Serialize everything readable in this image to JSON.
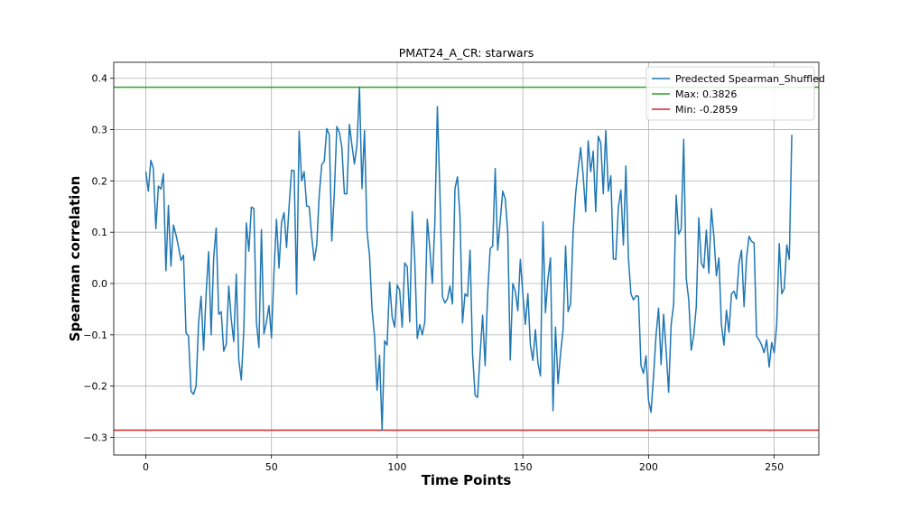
{
  "chart_data": {
    "type": "line",
    "title": "PMAT24_A_CR: starwars",
    "xlabel": "Time Points",
    "ylabel": "Spearman correlation",
    "xlim": [
      -12.75,
      267.75
    ],
    "ylim": [
      -0.3343,
      0.4312
    ],
    "x_ticks": [
      0,
      50,
      100,
      150,
      200,
      250
    ],
    "y_ticks": [
      -0.3,
      -0.2,
      -0.1,
      0.0,
      0.1,
      0.2,
      0.3,
      0.4
    ],
    "x_tick_labels": [
      "0",
      "50",
      "100",
      "150",
      "200",
      "250"
    ],
    "y_tick_labels": [
      "−0.3",
      "−0.2",
      "−0.1",
      "0.0",
      "0.1",
      "0.2",
      "0.3",
      "0.4"
    ],
    "grid": true,
    "legend_position": "top-right",
    "series": [
      {
        "name": "Predected Spearman_Shuffled",
        "color": "#1f77b4",
        "x_start": 0,
        "x_step": 1,
        "values": [
          0.218,
          0.18,
          0.24,
          0.225,
          0.107,
          0.19,
          0.184,
          0.214,
          0.025,
          0.152,
          0.034,
          0.114,
          0.095,
          0.072,
          0.045,
          0.055,
          -0.096,
          -0.103,
          -0.21,
          -0.216,
          -0.2,
          -0.077,
          -0.025,
          -0.13,
          -0.02,
          0.062,
          -0.1,
          0.05,
          0.108,
          -0.06,
          -0.055,
          -0.132,
          -0.118,
          -0.005,
          -0.07,
          -0.113,
          0.018,
          -0.15,
          -0.188,
          -0.09,
          0.118,
          0.063,
          0.149,
          0.146,
          -0.075,
          -0.125,
          0.105,
          -0.098,
          -0.075,
          -0.043,
          -0.106,
          0.023,
          0.125,
          0.03,
          0.119,
          0.138,
          0.07,
          0.15,
          0.221,
          0.22,
          -0.021,
          0.297,
          0.2,
          0.218,
          0.151,
          0.15,
          0.092,
          0.045,
          0.075,
          0.172,
          0.232,
          0.238,
          0.302,
          0.29,
          0.083,
          0.176,
          0.306,
          0.295,
          0.265,
          0.175,
          0.175,
          0.31,
          0.27,
          0.233,
          0.27,
          0.383,
          0.185,
          0.298,
          0.102,
          0.055,
          -0.05,
          -0.103,
          -0.208,
          -0.14,
          -0.286,
          -0.112,
          -0.12,
          0.003,
          -0.065,
          -0.085,
          -0.003,
          -0.013,
          -0.085,
          0.04,
          0.033,
          -0.075,
          0.14,
          0.045,
          -0.107,
          -0.08,
          -0.1,
          -0.075,
          0.125,
          0.068,
          0.0,
          0.12,
          0.345,
          0.18,
          -0.025,
          -0.038,
          -0.03,
          -0.005,
          -0.04,
          0.185,
          0.208,
          0.13,
          -0.077,
          -0.02,
          -0.025,
          0.065,
          -0.138,
          -0.218,
          -0.222,
          -0.138,
          -0.062,
          -0.16,
          -0.02,
          0.068,
          0.073,
          0.224,
          0.065,
          0.122,
          0.18,
          0.165,
          0.1,
          -0.149,
          0.0,
          -0.015,
          -0.053,
          0.047,
          -0.02,
          -0.08,
          -0.02,
          -0.12,
          -0.15,
          -0.09,
          -0.155,
          -0.18,
          0.12,
          -0.057,
          0.01,
          0.05,
          -0.248,
          -0.085,
          -0.195,
          -0.137,
          -0.09,
          0.073,
          -0.055,
          -0.04,
          0.1,
          0.175,
          0.223,
          0.265,
          0.21,
          0.14,
          0.278,
          0.218,
          0.258,
          0.14,
          0.287,
          0.274,
          0.175,
          0.298,
          0.18,
          0.21,
          0.048,
          0.047,
          0.148,
          0.182,
          0.075,
          0.229,
          0.05,
          -0.02,
          -0.032,
          -0.024,
          -0.025,
          -0.16,
          -0.175,
          -0.141,
          -0.228,
          -0.251,
          -0.18,
          -0.1,
          -0.048,
          -0.158,
          -0.06,
          -0.13,
          -0.212,
          -0.08,
          -0.04,
          0.172,
          0.096,
          0.106,
          0.281,
          0.01,
          -0.032,
          -0.13,
          -0.1,
          -0.045,
          0.128,
          0.04,
          0.03,
          0.104,
          0.02,
          0.146,
          0.092,
          0.015,
          0.05,
          -0.08,
          -0.12,
          -0.052,
          -0.095,
          -0.02,
          -0.015,
          -0.03,
          0.04,
          0.065,
          -0.045,
          0.05,
          0.092,
          0.082,
          0.079,
          -0.103,
          -0.11,
          -0.12,
          -0.135,
          -0.11,
          -0.163,
          -0.115,
          -0.135,
          -0.08,
          0.078,
          -0.02,
          -0.01,
          0.075,
          0.047,
          0.29
        ]
      },
      {
        "name": "Max: 0.3826",
        "color": "#2ca02c",
        "hline": 0.3826
      },
      {
        "name": "Min: -0.2859",
        "color": "#d62728",
        "hline": -0.2859
      }
    ]
  }
}
